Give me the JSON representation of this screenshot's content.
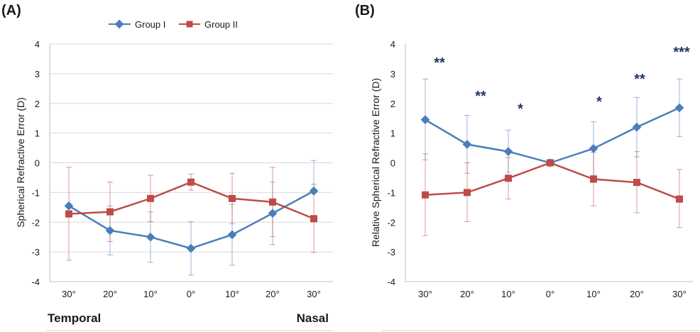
{
  "colors": {
    "group1": "#4a7ebb",
    "group2": "#be4b48",
    "grid": "#d9d9d9",
    "axis": "#bfbfbf",
    "text": "#1a1a1a",
    "stars": "#1f3864"
  },
  "panel_a": {
    "label": "(A)",
    "left_label": "Temporal",
    "right_label": "Nasal"
  },
  "panel_b": {
    "label": "(B)",
    "stars": [
      "**",
      "**",
      "*",
      "",
      "*",
      "**",
      "***"
    ]
  },
  "legend": [
    "Group I",
    "Group II"
  ],
  "chart_data": [
    {
      "type": "line",
      "title": "",
      "panel": "(A)",
      "categories": [
        "30°",
        "20°",
        "10°",
        "0°",
        "10°",
        "20°",
        "30°"
      ],
      "xlabel": "",
      "ylabel": "Spherical Refractive Error (D)",
      "ylim": [
        -4,
        4
      ],
      "yticks": [
        4,
        3,
        2,
        1,
        0,
        -1,
        -2,
        -3,
        -4
      ],
      "grid": true,
      "legend_position": "top-center",
      "annotations": [
        "Temporal",
        "Nasal"
      ],
      "series": [
        {
          "name": "Group I",
          "values": [
            -1.45,
            -2.28,
            -2.5,
            -2.88,
            -2.42,
            -1.7,
            -0.95
          ],
          "err_low": [
            -1.45,
            -3.1,
            -3.35,
            -3.78,
            -3.45,
            -2.75,
            -0.95
          ],
          "err_high": [
            -1.45,
            -1.45,
            -1.65,
            -1.98,
            -1.4,
            -0.65,
            0.08
          ]
        },
        {
          "name": "Group II",
          "values": [
            -1.72,
            -1.65,
            -1.2,
            -0.65,
            -1.2,
            -1.32,
            -1.88
          ],
          "err_low": [
            -3.28,
            -2.65,
            -1.98,
            -0.92,
            -2.05,
            -2.48,
            -3.02
          ],
          "err_high": [
            -0.15,
            -0.65,
            -0.42,
            -0.38,
            -0.35,
            -0.15,
            -0.72
          ]
        }
      ]
    },
    {
      "type": "line",
      "title": "",
      "panel": "(B)",
      "categories": [
        "30°",
        "20°",
        "10°",
        "0°",
        "10°",
        "20°",
        "30°"
      ],
      "xlabel": "",
      "ylabel": "Relative Spherical Refractive Error (D)",
      "ylim": [
        -4,
        4
      ],
      "yticks": [
        4,
        3,
        2,
        1,
        0,
        -1,
        -2,
        -3,
        -4
      ],
      "grid": false,
      "annotations": [
        "**",
        "**",
        "*",
        "*",
        "**",
        "***"
      ],
      "series": [
        {
          "name": "Group I",
          "values": [
            1.45,
            0.62,
            0.38,
            0.0,
            0.48,
            1.2,
            1.85
          ],
          "err_low": [
            0.1,
            -0.35,
            -0.32,
            0.0,
            -0.42,
            0.2,
            0.88
          ],
          "err_high": [
            2.82,
            1.6,
            1.1,
            0.0,
            1.38,
            2.2,
            2.82
          ]
        },
        {
          "name": "Group II",
          "values": [
            -1.08,
            -1.0,
            -0.52,
            0.0,
            -0.55,
            -0.66,
            -1.22
          ],
          "err_low": [
            -2.45,
            -1.98,
            -1.22,
            0.0,
            -1.45,
            -1.68,
            -2.18
          ],
          "err_high": [
            0.3,
            0.0,
            0.18,
            0.0,
            0.35,
            0.38,
            -0.22
          ]
        }
      ]
    }
  ]
}
